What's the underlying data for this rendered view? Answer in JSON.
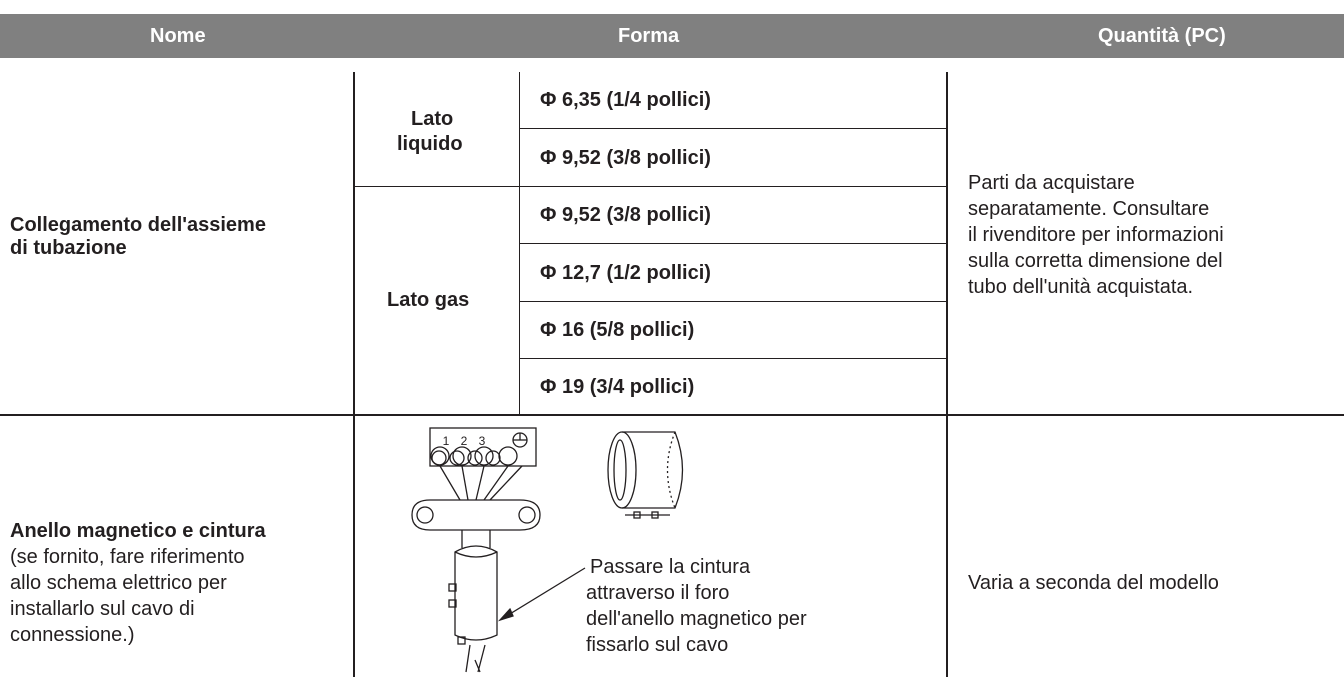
{
  "header": {
    "nome": "Nome",
    "forma": "Forma",
    "quantita": "Quantità (PC)"
  },
  "rows": [
    {
      "nome": [
        "Collegamento dell'assieme",
        "di tubazione"
      ],
      "groups": [
        {
          "label": [
            "Lato",
            "liquido"
          ],
          "sizes": [
            "Φ 6,35 (1/4 pollici)",
            "Φ 9,52 (3/8 pollici)"
          ]
        },
        {
          "label": [
            "Lato gas"
          ],
          "sizes": [
            "Φ 9,52 (3/8 pollici)",
            "Φ 12,7 (1/2 pollici)",
            "Φ 16 (5/8 pollici)",
            "Φ 19 (3/4 pollici)"
          ]
        }
      ],
      "quantita": [
        "Parti da acquistare",
        "separatamente. Consultare",
        "il rivenditore per informazioni",
        "sulla corretta dimensione del",
        "tubo dell'unità acquistata."
      ]
    },
    {
      "nome_title": "Anello magnetico e cintura",
      "nome_note": [
        "(se fornito, fare riferimento",
        "allo schema elettrico per",
        "installarlo sul cavo di",
        "connessione.)"
      ],
      "diagram_labels": [
        "1",
        "2",
        "3"
      ],
      "caption": [
        "Passare la cintura",
        "attraverso il foro",
        "dell'anello magnetico per",
        "fissarlo sul cavo"
      ],
      "quantita": "Varia a seconda del modello"
    }
  ]
}
